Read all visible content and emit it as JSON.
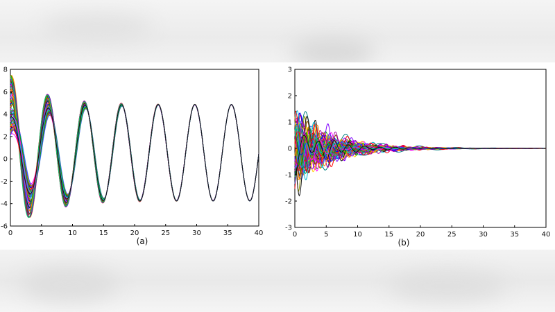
{
  "chart_data": [
    {
      "type": "line",
      "caption": "(a)",
      "xlim": [
        0,
        40
      ],
      "ylim": [
        -6,
        8
      ],
      "xticks": [
        0,
        5,
        10,
        15,
        20,
        25,
        30,
        35,
        40
      ],
      "yticks": [
        -6,
        -4,
        -2,
        0,
        2,
        4,
        6,
        8
      ],
      "grid": false,
      "series_count": 70,
      "series_shape": {
        "settled": {
          "amplitude": 4.3,
          "offset": 0.55,
          "period": 5.9,
          "phase_peak_x": 6.1
        },
        "initial_spread_range": [
          2,
          6.3
        ],
        "first_trough_range": [
          -5.1,
          -1.8
        ],
        "spread_decay_by_x": 15
      }
    },
    {
      "type": "line",
      "caption": "(b)",
      "xlim": [
        0,
        40
      ],
      "ylim": [
        -3,
        3
      ],
      "xticks": [
        0,
        5,
        10,
        15,
        20,
        25,
        30,
        35,
        40
      ],
      "yticks": [
        -3,
        -2,
        -1,
        0,
        1,
        2,
        3
      ],
      "grid": false,
      "series_count": 70,
      "series_shape": {
        "max_amplitude": 2.2,
        "min_value": -2.5,
        "decay_to_zero_by_x": 30
      }
    }
  ],
  "palette": [
    "#0000ff",
    "#ff0000",
    "#00aa00",
    "#ff00ff",
    "#00bcd4",
    "#111111",
    "#ffcc00",
    "#ff8000",
    "#8000ff",
    "#008080",
    "#804000",
    "#aa00aa",
    "#00cc66",
    "#3366ff",
    "#cc3333",
    "#999900"
  ]
}
